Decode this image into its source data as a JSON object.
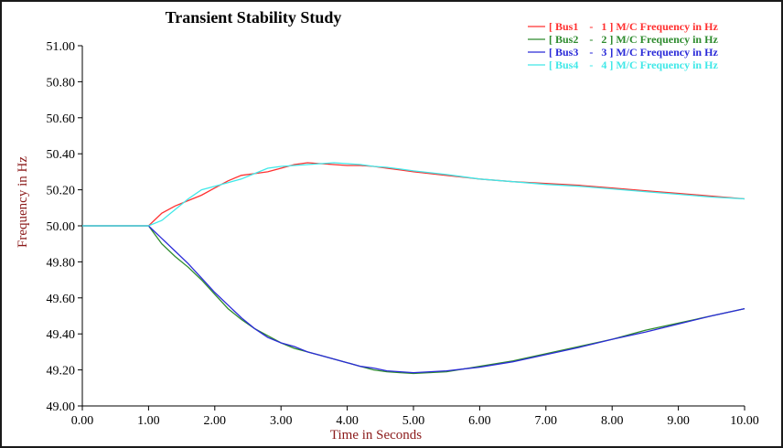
{
  "chart_data": {
    "type": "line",
    "title": "Transient Stability Study",
    "xlabel": "Time in Seconds",
    "ylabel": "Frequency in Hz",
    "xlim": [
      0,
      10
    ],
    "ylim": [
      49.0,
      51.0
    ],
    "x_ticks": [
      "0.00",
      "1.00",
      "2.00",
      "3.00",
      "4.00",
      "5.00",
      "6.00",
      "7.00",
      "8.00",
      "9.00",
      "10.00"
    ],
    "y_ticks": [
      "51.00",
      "50.80",
      "50.60",
      "50.40",
      "50.20",
      "50.00",
      "49.80",
      "49.60",
      "49.40",
      "49.20",
      "49.00"
    ],
    "grid": false,
    "legend_position": "top-right",
    "series": [
      {
        "name": "[ Bus1    -   1 ] M/C Frequency in Hz",
        "color": "#ff3030",
        "x": [
          0,
          1.0,
          1.2,
          1.4,
          1.6,
          1.8,
          2.0,
          2.2,
          2.4,
          2.6,
          2.8,
          3.0,
          3.2,
          3.4,
          3.6,
          3.8,
          4.0,
          4.2,
          4.4,
          4.6,
          4.8,
          5.0,
          5.5,
          6.0,
          6.5,
          7.0,
          7.5,
          8.0,
          8.5,
          9.0,
          9.5,
          10.0
        ],
        "y": [
          50.0,
          50.0,
          50.07,
          50.11,
          50.14,
          50.17,
          50.21,
          50.25,
          50.28,
          50.29,
          50.3,
          50.32,
          50.34,
          50.35,
          50.345,
          50.34,
          50.335,
          50.335,
          50.33,
          50.32,
          50.31,
          50.3,
          50.28,
          50.26,
          50.245,
          50.235,
          50.225,
          50.21,
          50.195,
          50.18,
          50.165,
          50.15
        ]
      },
      {
        "name": "[ Bus2    -   2 ] M/C Frequency in Hz",
        "color": "#2e8b2e",
        "x": [
          0,
          1.0,
          1.2,
          1.4,
          1.6,
          1.8,
          2.0,
          2.2,
          2.4,
          2.6,
          2.8,
          3.0,
          3.2,
          3.4,
          3.6,
          3.8,
          4.0,
          4.2,
          4.4,
          4.6,
          4.8,
          5.0,
          5.5,
          6.0,
          6.5,
          7.0,
          7.5,
          8.0,
          8.5,
          9.0,
          9.5,
          10.0
        ],
        "y": [
          50.0,
          50.0,
          49.9,
          49.83,
          49.77,
          49.7,
          49.62,
          49.54,
          49.48,
          49.43,
          49.39,
          49.35,
          49.32,
          49.3,
          49.28,
          49.26,
          49.24,
          49.22,
          49.2,
          49.19,
          49.185,
          49.18,
          49.19,
          49.22,
          49.25,
          49.29,
          49.33,
          49.37,
          49.42,
          49.46,
          49.5,
          49.54
        ]
      },
      {
        "name": "[ Bus3    -   3 ] M/C Frequency in Hz",
        "color": "#2a2ad8",
        "x": [
          0,
          1.0,
          1.2,
          1.4,
          1.6,
          1.8,
          2.0,
          2.2,
          2.4,
          2.6,
          2.8,
          3.0,
          3.2,
          3.4,
          3.6,
          3.8,
          4.0,
          4.2,
          4.4,
          4.6,
          4.8,
          5.0,
          5.5,
          6.0,
          6.5,
          7.0,
          7.5,
          8.0,
          8.5,
          9.0,
          9.5,
          10.0
        ],
        "y": [
          50.0,
          50.0,
          49.93,
          49.86,
          49.79,
          49.71,
          49.63,
          49.56,
          49.49,
          49.43,
          49.38,
          49.35,
          49.33,
          49.3,
          49.28,
          49.26,
          49.24,
          49.22,
          49.21,
          49.195,
          49.19,
          49.185,
          49.195,
          49.215,
          49.245,
          49.285,
          49.325,
          49.37,
          49.41,
          49.455,
          49.5,
          49.54
        ]
      },
      {
        "name": "[ Bus4    -   4 ] M/C Frequency in Hz",
        "color": "#40e8e8",
        "x": [
          0,
          1.0,
          1.2,
          1.4,
          1.6,
          1.8,
          2.0,
          2.2,
          2.4,
          2.6,
          2.8,
          3.0,
          3.2,
          3.4,
          3.6,
          3.8,
          4.0,
          4.2,
          4.4,
          4.6,
          4.8,
          5.0,
          5.5,
          6.0,
          6.5,
          7.0,
          7.5,
          8.0,
          8.5,
          9.0,
          9.5,
          10.0
        ],
        "y": [
          50.0,
          50.0,
          50.03,
          50.09,
          50.15,
          50.2,
          50.22,
          50.24,
          50.26,
          50.29,
          50.32,
          50.33,
          50.335,
          50.34,
          50.345,
          50.35,
          50.345,
          50.34,
          50.33,
          50.325,
          50.315,
          50.305,
          50.285,
          50.26,
          50.245,
          50.23,
          50.22,
          50.205,
          50.19,
          50.175,
          50.16,
          50.15
        ]
      }
    ]
  }
}
